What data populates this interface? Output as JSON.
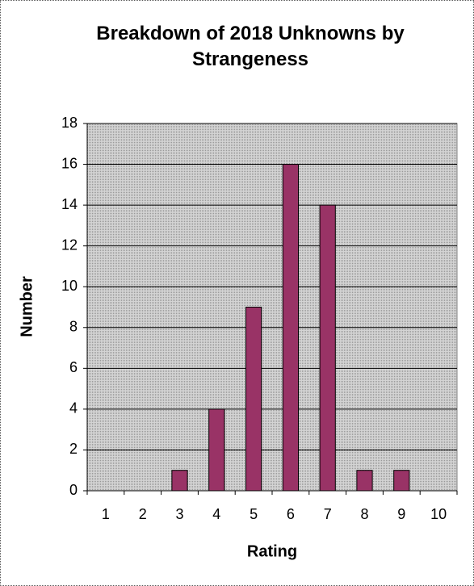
{
  "chart_data": {
    "type": "bar",
    "title": "Breakdown of 2018 Unknowns by Strangeness",
    "x_label": "Rating",
    "y_label": "Number",
    "categories": [
      "1",
      "2",
      "3",
      "4",
      "5",
      "6",
      "7",
      "8",
      "9",
      "10"
    ],
    "values": [
      0,
      0,
      1,
      4,
      9,
      16,
      14,
      1,
      1,
      0
    ],
    "color": "#993366",
    "ylim": [
      0,
      18
    ],
    "yticks": [
      0,
      2,
      4,
      6,
      8,
      10,
      12,
      14,
      16,
      18
    ],
    "grid": true
  }
}
